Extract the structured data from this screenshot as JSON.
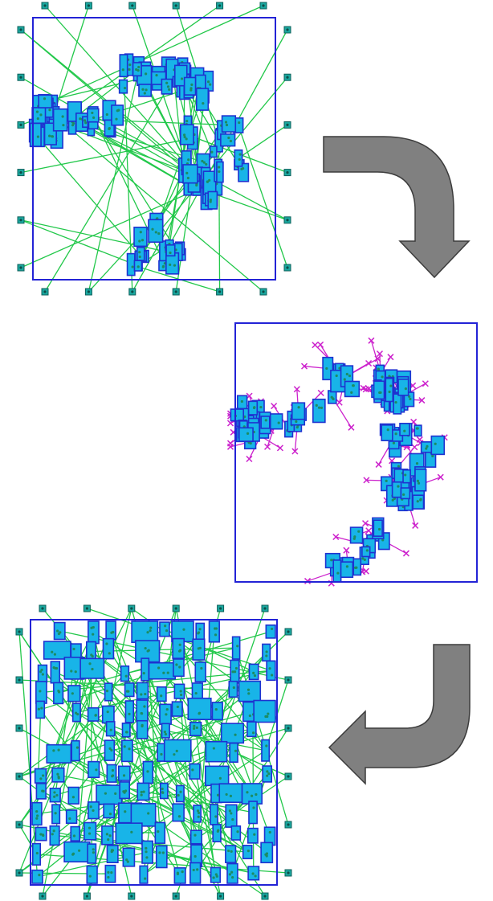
{
  "colors": {
    "boundary": "#2323d6",
    "cell_fill": "#18b4e8",
    "cell_stroke": "#1e32d0",
    "net_green": "#22c84a",
    "net_magenta": "#cc22cc",
    "pad": "#1aa8a0",
    "arrow": "#808080"
  },
  "panels": [
    {
      "name": "initial-clustered-placement",
      "has_pads": true,
      "net_color": "green"
    },
    {
      "name": "moves-with-targets",
      "has_pads": false,
      "net_color": "magenta"
    },
    {
      "name": "spread-placement",
      "has_pads": true,
      "net_color": "green"
    }
  ],
  "arrows": [
    {
      "name": "curved-arrow-down",
      "direction": "right-then-down"
    },
    {
      "name": "curved-arrow-left",
      "direction": "down-then-left"
    }
  ]
}
